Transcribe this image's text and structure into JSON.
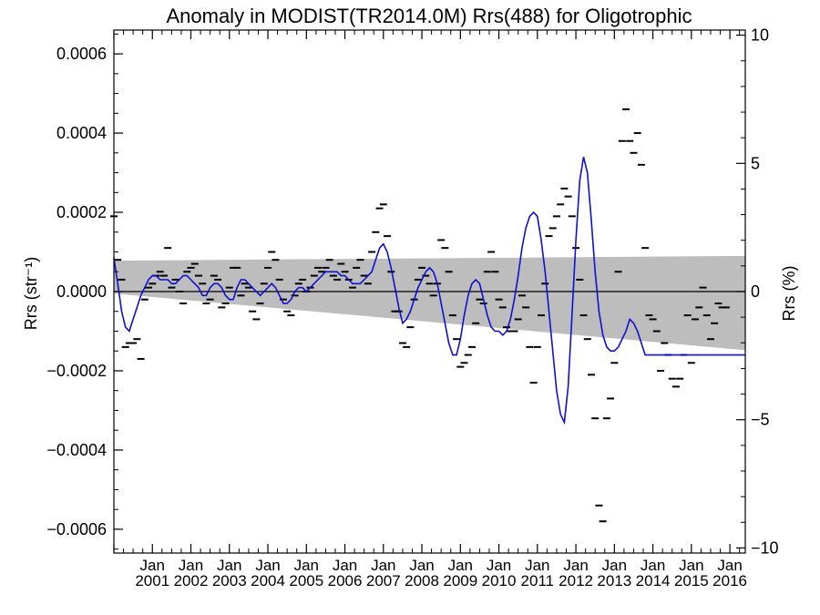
{
  "chart_data": {
    "type": "line",
    "title": "Anomaly in MODIST(TR2014.0M) Rrs(488) for Oligotrophic",
    "ylabel_left": "Rrs (str⁻¹)",
    "ylabel_right": "Rrs (%)",
    "xlim": [
      2000.0,
      2016.4
    ],
    "ylim_left": [
      -0.00066,
      0.00066
    ],
    "ylim_right": [
      -10.2,
      10.2
    ],
    "left_ticks": [
      {
        "value": 0.0006,
        "label": "0.0006"
      },
      {
        "value": 0.0004,
        "label": "0.0004"
      },
      {
        "value": 0.0002,
        "label": "0.0002"
      },
      {
        "value": 0.0,
        "label": "0.0000"
      },
      {
        "value": -0.0002,
        "label": "−0.0002"
      },
      {
        "value": -0.0004,
        "label": "−0.0004"
      },
      {
        "value": -0.0006,
        "label": "−0.0006"
      }
    ],
    "right_ticks": [
      {
        "value": 10,
        "label": "10"
      },
      {
        "value": 5,
        "label": "5"
      },
      {
        "value": 0,
        "label": "0"
      },
      {
        "value": -5,
        "label": "−5"
      },
      {
        "value": -10,
        "label": "−10"
      }
    ],
    "x_ticks": [
      {
        "value": 2001,
        "month": "Jan",
        "year": "2001"
      },
      {
        "value": 2002,
        "month": "Jan",
        "year": "2002"
      },
      {
        "value": 2003,
        "month": "Jan",
        "year": "2003"
      },
      {
        "value": 2004,
        "month": "Jan",
        "year": "2004"
      },
      {
        "value": 2005,
        "month": "Jan",
        "year": "2005"
      },
      {
        "value": 2006,
        "month": "Jan",
        "year": "2006"
      },
      {
        "value": 2007,
        "month": "Jan",
        "year": "2007"
      },
      {
        "value": 2008,
        "month": "Jan",
        "year": "2008"
      },
      {
        "value": 2009,
        "month": "Jan",
        "year": "2009"
      },
      {
        "value": 2010,
        "month": "Jan",
        "year": "2010"
      },
      {
        "value": 2011,
        "month": "Jan",
        "year": "2011"
      },
      {
        "value": 2012,
        "month": "Jan",
        "year": "2012"
      },
      {
        "value": 2013,
        "month": "Jan",
        "year": "2013"
      },
      {
        "value": 2014,
        "month": "Jan",
        "year": "2014"
      },
      {
        "value": 2015,
        "month": "Jan",
        "year": "2015"
      },
      {
        "value": 2016,
        "month": "Jan",
        "year": "2016"
      }
    ],
    "band": {
      "x": [
        2000.0,
        2016.4
      ],
      "upper": [
        7.8e-05,
        9e-05
      ],
      "lower": [
        -5e-06,
        -0.000148
      ]
    },
    "zero_line": 0,
    "series": [
      {
        "kind": "line",
        "color": "#1010d0",
        "x": [
          2000.0,
          2000.1,
          2000.2,
          2000.3,
          2000.4,
          2000.5,
          2000.6,
          2000.7,
          2000.8,
          2000.9,
          2001.0,
          2001.1,
          2001.2,
          2001.3,
          2001.4,
          2001.5,
          2001.6,
          2001.7,
          2001.8,
          2001.9,
          2002.0,
          2002.1,
          2002.2,
          2002.3,
          2002.4,
          2002.5,
          2002.6,
          2002.7,
          2002.8,
          2002.9,
          2003.0,
          2003.1,
          2003.2,
          2003.3,
          2003.4,
          2003.5,
          2003.6,
          2003.7,
          2003.8,
          2003.9,
          2004.0,
          2004.1,
          2004.2,
          2004.3,
          2004.4,
          2004.5,
          2004.6,
          2004.7,
          2004.8,
          2004.9,
          2005.0,
          2005.1,
          2005.2,
          2005.3,
          2005.4,
          2005.5,
          2005.6,
          2005.7,
          2005.8,
          2005.9,
          2006.0,
          2006.1,
          2006.2,
          2006.3,
          2006.4,
          2006.5,
          2006.6,
          2006.7,
          2006.8,
          2006.9,
          2007.0,
          2007.1,
          2007.2,
          2007.3,
          2007.4,
          2007.5,
          2007.6,
          2007.7,
          2007.8,
          2007.9,
          2008.0,
          2008.1,
          2008.2,
          2008.3,
          2008.4,
          2008.5,
          2008.6,
          2008.7,
          2008.8,
          2008.9,
          2009.0,
          2009.1,
          2009.2,
          2009.3,
          2009.4,
          2009.5,
          2009.6,
          2009.7,
          2009.8,
          2009.9,
          2010.0,
          2010.1,
          2010.2,
          2010.3,
          2010.4,
          2010.5,
          2010.6,
          2010.7,
          2010.8,
          2010.9,
          2011.0,
          2011.1,
          2011.2,
          2011.3,
          2011.4,
          2011.5,
          2011.6,
          2011.7,
          2011.8,
          2011.9,
          2012.0,
          2012.1,
          2012.2,
          2012.3,
          2012.4,
          2012.5,
          2012.6,
          2012.7,
          2012.8,
          2012.9,
          2013.0,
          2013.1,
          2013.2,
          2013.3,
          2013.4,
          2013.5,
          2013.6,
          2013.7,
          2013.8,
          2013.9,
          2014.0,
          2014.1,
          2014.2,
          2014.3,
          2014.4,
          2014.5,
          2014.6,
          2014.7,
          2014.8,
          2014.9,
          2015.0,
          2015.1,
          2015.2,
          2015.3,
          2015.4,
          2015.5,
          2015.6,
          2015.7,
          2015.8,
          2015.9,
          2016.0,
          2016.1,
          2016.2,
          2016.3,
          2016.4
        ],
        "y": [
          8.5e-05,
          2e-05,
          -5e-05,
          -9e-05,
          -0.0001,
          -7e-05,
          -4e-05,
          -1e-05,
          1e-05,
          3e-05,
          4e-05,
          4e-05,
          3e-05,
          3e-05,
          3e-05,
          2e-05,
          2e-05,
          3e-05,
          4e-05,
          4e-05,
          3e-05,
          2e-05,
          1e-05,
          -1e-05,
          -1e-05,
          1e-05,
          2e-05,
          2e-05,
          1e-05,
          -1e-05,
          -2e-05,
          -2e-05,
          1e-05,
          3e-05,
          3e-05,
          2e-05,
          1e-05,
          0.0,
          -1e-05,
          0.0,
          1e-05,
          2e-05,
          1e-05,
          -1e-05,
          -3e-05,
          -3e-05,
          -2e-05,
          0.0,
          1e-05,
          1e-05,
          0.0,
          1e-05,
          2e-05,
          3e-05,
          4e-05,
          5e-05,
          5e-05,
          5e-05,
          5e-05,
          4e-05,
          4e-05,
          3e-05,
          2e-05,
          2e-05,
          2e-05,
          3e-05,
          4e-05,
          5e-05,
          8e-05,
          0.00011,
          0.00012,
          0.0001,
          6e-05,
          1e-05,
          -4e-05,
          -8e-05,
          -7e-05,
          -5e-05,
          -2e-05,
          1e-05,
          3e-05,
          5e-05,
          6e-05,
          5e-05,
          2e-05,
          -3e-05,
          -8e-05,
          -0.00013,
          -0.00016,
          -0.00016,
          -0.00012,
          -6e-05,
          -1e-05,
          2e-05,
          3e-05,
          2e-05,
          -2e-05,
          -6e-05,
          -9e-05,
          -0.0001,
          -0.0001,
          -0.00011,
          -0.0001,
          -7e-05,
          -2e-05,
          4e-05,
          0.00011,
          0.00016,
          0.00019,
          0.0002,
          0.00019,
          0.00013,
          5e-05,
          -5e-05,
          -0.00015,
          -0.00025,
          -0.00031,
          -0.00033,
          -0.00024,
          -6e-05,
          0.00013,
          0.00028,
          0.00034,
          0.0003,
          0.00018,
          5e-05,
          -5e-05,
          -0.00011,
          -0.00014,
          -0.00015,
          -0.00015,
          -0.00014,
          -0.00012,
          -0.0001,
          -7e-05,
          -8e-05,
          -0.0001,
          -0.00013,
          -0.00016,
          -0.00016,
          -0.00016,
          -0.00016,
          -0.00016,
          -0.00016,
          -0.00016,
          -0.00016,
          -0.00016,
          -0.00016,
          -0.00016,
          -0.00016,
          -0.00016,
          -0.00016,
          -0.00016,
          -0.00016,
          -0.00016,
          -0.00016,
          -0.00016,
          -0.00016,
          -0.00016,
          -0.00016,
          -0.00016,
          -0.00016,
          -0.00016,
          -0.00016,
          -0.00016
        ]
      },
      {
        "kind": "dash-markers",
        "color": "#000000",
        "points": [
          [
            2000.0,
            0.00019
          ],
          [
            2000.1,
            8e-05
          ],
          [
            2000.2,
            3e-05
          ],
          [
            2000.3,
            -0.00014
          ],
          [
            2000.4,
            -0.00013
          ],
          [
            2000.5,
            -0.00013
          ],
          [
            2000.6,
            -0.00012
          ],
          [
            2000.7,
            -0.00017
          ],
          [
            2000.8,
            -2e-05
          ],
          [
            2000.9,
            1e-05
          ],
          [
            2001.0,
            2e-05
          ],
          [
            2001.1,
            4e-05
          ],
          [
            2001.2,
            5e-05
          ],
          [
            2001.3,
            4e-05
          ],
          [
            2001.4,
            0.00011
          ],
          [
            2001.5,
            1e-05
          ],
          [
            2001.6,
            3e-05
          ],
          [
            2001.7,
            0.0
          ],
          [
            2001.8,
            -3e-05
          ],
          [
            2001.9,
            5e-05
          ],
          [
            2002.0,
            6e-05
          ],
          [
            2002.1,
            7e-05
          ],
          [
            2002.2,
            4e-05
          ],
          [
            2002.3,
            2e-05
          ],
          [
            2002.4,
            -3e-05
          ],
          [
            2002.5,
            -2e-05
          ],
          [
            2002.6,
            4e-05
          ],
          [
            2002.7,
            3e-05
          ],
          [
            2002.8,
            -4e-05
          ],
          [
            2002.9,
            -3e-05
          ],
          [
            2003.0,
            1e-05
          ],
          [
            2003.1,
            6e-05
          ],
          [
            2003.2,
            6e-05
          ],
          [
            2003.3,
            -1e-05
          ],
          [
            2003.4,
            2e-05
          ],
          [
            2003.5,
            1e-05
          ],
          [
            2003.6,
            -5e-05
          ],
          [
            2003.7,
            -7e-05
          ],
          [
            2003.8,
            -3e-05
          ],
          [
            2003.9,
            2e-05
          ],
          [
            2004.0,
            6e-05
          ],
          [
            2004.1,
            0.0001
          ],
          [
            2004.2,
            8e-05
          ],
          [
            2004.3,
            3e-05
          ],
          [
            2004.4,
            -2e-05
          ],
          [
            2004.5,
            -5e-05
          ],
          [
            2004.6,
            -6e-05
          ],
          [
            2004.7,
            -1e-05
          ],
          [
            2004.8,
            2e-05
          ],
          [
            2004.9,
            3e-05
          ],
          [
            2005.0,
            0.0
          ],
          [
            2005.1,
            1e-05
          ],
          [
            2005.2,
            4e-05
          ],
          [
            2005.3,
            6e-05
          ],
          [
            2005.4,
            5e-05
          ],
          [
            2005.5,
            6e-05
          ],
          [
            2005.6,
            8e-05
          ],
          [
            2005.7,
            4e-05
          ],
          [
            2005.8,
            3e-05
          ],
          [
            2005.9,
            7e-05
          ],
          [
            2006.0,
            5e-05
          ],
          [
            2006.1,
            3e-05
          ],
          [
            2006.2,
            1e-05
          ],
          [
            2006.3,
            6e-05
          ],
          [
            2006.4,
            8e-05
          ],
          [
            2006.5,
            4e-05
          ],
          [
            2006.6,
            2e-05
          ],
          [
            2006.7,
            0.0001
          ],
          [
            2006.8,
            0.00015
          ],
          [
            2006.9,
            0.00021
          ],
          [
            2007.0,
            0.00022
          ],
          [
            2007.1,
            0.00014
          ],
          [
            2007.2,
            5e-05
          ],
          [
            2007.3,
            -5e-05
          ],
          [
            2007.4,
            -5e-05
          ],
          [
            2007.5,
            -0.00013
          ],
          [
            2007.6,
            -0.00014
          ],
          [
            2007.7,
            -9e-05
          ],
          [
            2007.8,
            -2e-05
          ],
          [
            2007.9,
            3e-05
          ],
          [
            2008.0,
            6e-05
          ],
          [
            2008.1,
            4e-05
          ],
          [
            2008.2,
            2e-05
          ],
          [
            2008.3,
            -1e-05
          ],
          [
            2008.4,
            2e-05
          ],
          [
            2008.5,
            0.00013
          ],
          [
            2008.6,
            0.00011
          ],
          [
            2008.7,
            5e-05
          ],
          [
            2008.8,
            -6e-05
          ],
          [
            2008.9,
            -0.00012
          ],
          [
            2009.0,
            -0.00019
          ],
          [
            2009.1,
            -0.00018
          ],
          [
            2009.2,
            -0.00016
          ],
          [
            2009.3,
            -0.00014
          ],
          [
            2009.4,
            -8e-05
          ],
          [
            2009.5,
            -2e-05
          ],
          [
            2009.6,
            -3e-05
          ],
          [
            2009.7,
            5e-05
          ],
          [
            2009.8,
            0.0001
          ],
          [
            2009.9,
            5e-05
          ],
          [
            2010.0,
            -2e-05
          ],
          [
            2010.1,
            -4e-05
          ],
          [
            2010.2,
            -9e-05
          ],
          [
            2010.3,
            -0.0001
          ],
          [
            2010.4,
            -0.0001
          ],
          [
            2010.5,
            -7e-05
          ],
          [
            2010.6,
            -1e-05
          ],
          [
            2010.7,
            -4e-05
          ],
          [
            2010.8,
            -0.00014
          ],
          [
            2010.9,
            -0.00023
          ],
          [
            2011.0,
            -0.00014
          ],
          [
            2011.1,
            -6e-05
          ],
          [
            2011.2,
            2e-05
          ],
          [
            2011.3,
            0.00014
          ],
          [
            2011.4,
            0.00016
          ],
          [
            2011.5,
            0.00019
          ],
          [
            2011.6,
            0.00022
          ],
          [
            2011.7,
            0.00026
          ],
          [
            2011.8,
            0.00024
          ],
          [
            2011.9,
            0.00019
          ],
          [
            2012.0,
            0.00011
          ],
          [
            2012.1,
            3e-05
          ],
          [
            2012.2,
            -6e-05
          ],
          [
            2012.3,
            -0.00012
          ],
          [
            2012.4,
            -0.00021
          ],
          [
            2012.5,
            -0.00032
          ],
          [
            2012.6,
            -0.00054
          ],
          [
            2012.7,
            -0.00058
          ],
          [
            2012.8,
            -0.00032
          ],
          [
            2012.9,
            -0.00027
          ],
          [
            2013.0,
            -0.00018
          ],
          [
            2013.1,
            5e-05
          ],
          [
            2013.2,
            0.00038
          ],
          [
            2013.3,
            0.00046
          ],
          [
            2013.4,
            0.00038
          ],
          [
            2013.5,
            0.00035
          ],
          [
            2013.6,
            0.0004
          ],
          [
            2013.7,
            0.00032
          ],
          [
            2013.8,
            0.00011
          ],
          [
            2013.9,
            -6e-05
          ],
          [
            2014.0,
            -7e-05
          ],
          [
            2014.1,
            -0.0001
          ],
          [
            2014.2,
            -0.0002
          ],
          [
            2014.3,
            -0.00013
          ],
          [
            2014.4,
            -0.00016
          ],
          [
            2014.5,
            -0.00022
          ],
          [
            2014.6,
            -0.00024
          ],
          [
            2014.7,
            -0.00022
          ],
          [
            2014.8,
            -0.00016
          ],
          [
            2014.9,
            -6e-05
          ],
          [
            2015.0,
            -0.00018
          ],
          [
            2015.1,
            -7e-05
          ],
          [
            2015.2,
            -4e-05
          ],
          [
            2015.3,
            1e-05
          ],
          [
            2015.4,
            -6e-05
          ],
          [
            2015.5,
            -0.00012
          ],
          [
            2015.6,
            -8e-05
          ],
          [
            2015.7,
            -3e-05
          ],
          [
            2015.8,
            -4e-05
          ],
          [
            2015.9,
            -4e-05
          ]
        ]
      }
    ]
  }
}
